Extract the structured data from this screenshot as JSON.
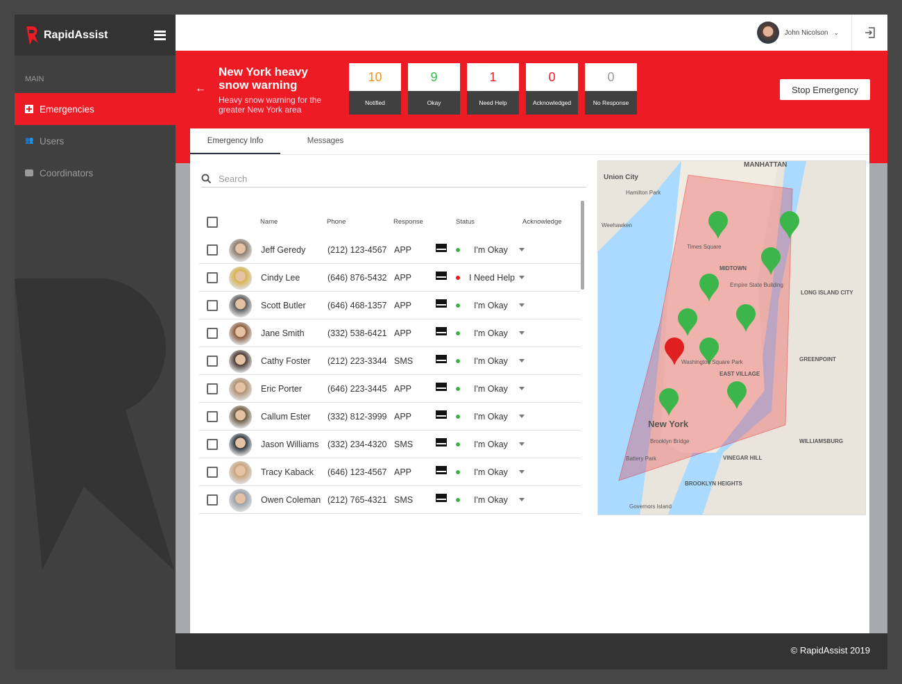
{
  "app": {
    "name": "RapidAssist",
    "copyright": "© RapidAssist 2019"
  },
  "sidebar": {
    "section": "MAIN",
    "items": [
      {
        "label": "Emergencies",
        "icon": "first-aid-icon",
        "active": true
      },
      {
        "label": "Users",
        "icon": "users-icon"
      },
      {
        "label": "Coordinators",
        "icon": "briefcase-icon"
      }
    ]
  },
  "header": {
    "user_name": "John Nicolson"
  },
  "emergency": {
    "title": "New York heavy snow warning",
    "description": "Heavy snow warning for the greater New York area",
    "stop_label": "Stop Emergency",
    "stats": [
      {
        "value": "10",
        "label": "Notified",
        "color": "#f7941d"
      },
      {
        "value": "9",
        "label": "Okay",
        "color": "#39b54a"
      },
      {
        "value": "1",
        "label": "Need Help",
        "color": "#ed1c24"
      },
      {
        "value": "0",
        "label": "Acknowledged",
        "color": "#ed1c24"
      },
      {
        "value": "0",
        "label": "No Response",
        "color": "#999999"
      }
    ]
  },
  "tabs": [
    {
      "label": "Emergency Info",
      "active": true
    },
    {
      "label": "Messages"
    }
  ],
  "search": {
    "placeholder": "Search"
  },
  "table": {
    "headers": {
      "name": "Name",
      "phone": "Phone",
      "response": "Response",
      "status": "Status",
      "acknowledge": "Acknowledge"
    },
    "rows": [
      {
        "name": "Jeff Geredy",
        "phone": "(212) 123-4567",
        "response": "APP",
        "status": "I'm Okay",
        "status_color": "#39b54a"
      },
      {
        "name": "Cindy Lee",
        "phone": "(646) 876-5432",
        "response": "APP",
        "status": "I Need Help",
        "status_color": "#ed1c24"
      },
      {
        "name": "Scott Butler",
        "phone": "(646) 468-1357",
        "response": "APP",
        "status": "I'm Okay",
        "status_color": "#39b54a"
      },
      {
        "name": "Jane Smith",
        "phone": "(332) 538-6421",
        "response": "APP",
        "status": "I'm Okay",
        "status_color": "#39b54a"
      },
      {
        "name": "Cathy Foster",
        "phone": "(212) 223-3344",
        "response": "SMS",
        "status": "I'm Okay",
        "status_color": "#39b54a"
      },
      {
        "name": "Eric Porter",
        "phone": "(646) 223-3445",
        "response": "APP",
        "status": "I'm Okay",
        "status_color": "#39b54a"
      },
      {
        "name": "Callum Ester",
        "phone": "(332) 812-3999",
        "response": "APP",
        "status": "I'm Okay",
        "status_color": "#39b54a"
      },
      {
        "name": "Jason Williams",
        "phone": "(332) 234-4320",
        "response": "SMS",
        "status": "I'm Okay",
        "status_color": "#39b54a"
      },
      {
        "name": "Tracy Kaback",
        "phone": "(646) 123-4567",
        "response": "APP",
        "status": "I'm Okay",
        "status_color": "#39b54a"
      },
      {
        "name": "Owen Coleman",
        "phone": "(212) 765-4321",
        "response": "SMS",
        "status": "I'm Okay",
        "status_color": "#39b54a"
      }
    ]
  },
  "map": {
    "labels": [
      "MANHATTAN",
      "Union City",
      "Hamilton Park",
      "Weehawken",
      "Times Square",
      "MIDTOWN",
      "Empire State Building",
      "New York",
      "EAST VILLAGE",
      "GREENPOINT",
      "WILLIAMSBURG",
      "Brooklyn Bridge",
      "Battery Park",
      "VINEGAR HILL",
      "BROOKLYN HEIGHTS",
      "Governors Island",
      "LONG ISLAND CITY",
      "Washington Square Park"
    ]
  }
}
